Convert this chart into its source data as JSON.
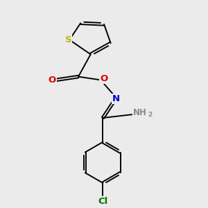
{
  "background_color": "#ebebeb",
  "atom_colors": {
    "S": "#b8b800",
    "O": "#dd0000",
    "N": "#0000cc",
    "Cl": "#007700",
    "C": "#000000",
    "H": "#888888"
  },
  "font_size_atoms": 8.5,
  "line_width": 1.4,
  "fig_size": [
    3.0,
    3.0
  ],
  "dpi": 100
}
